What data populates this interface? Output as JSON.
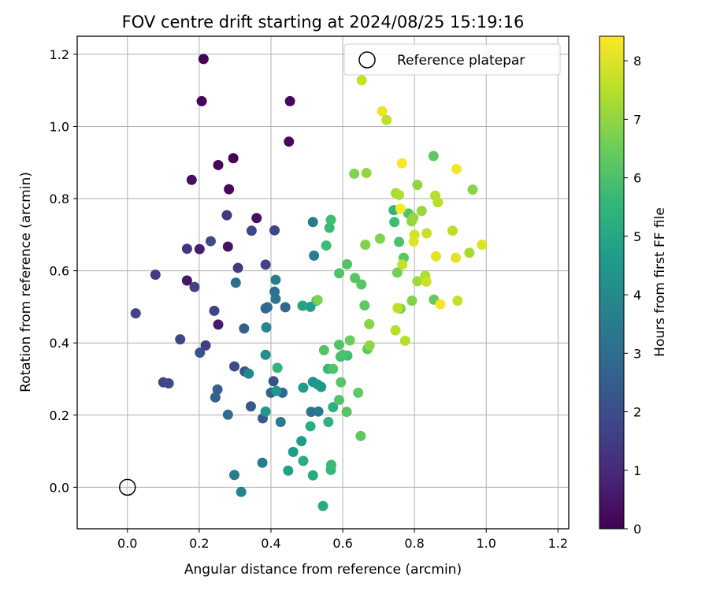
{
  "chart_data": {
    "type": "scatter",
    "title": "FOV centre drift starting at 2024/08/25 15:19:16",
    "xlabel": "Angular distance from reference (arcmin)",
    "ylabel": "Rotation from reference (arcmin)",
    "xlim": [
      -0.14,
      1.23
    ],
    "ylim": [
      -0.115,
      1.25
    ],
    "xticks": [
      0.0,
      0.2,
      0.4,
      0.6,
      0.8,
      1.0,
      1.2
    ],
    "xtick_labels": [
      "0.0",
      "0.2",
      "0.4",
      "0.6",
      "0.8",
      "1.0",
      "1.2"
    ],
    "yticks": [
      0.0,
      0.2,
      0.4,
      0.6,
      0.8,
      1.0,
      1.2
    ],
    "ytick_labels": [
      "0.0",
      "0.2",
      "0.4",
      "0.6",
      "0.8",
      "1.0",
      "1.2"
    ],
    "grid": true,
    "legend": {
      "position": "top-right",
      "entries": [
        {
          "label": "Reference platepar",
          "marker": "open-circle",
          "color": "#000000"
        }
      ]
    },
    "reference_point": {
      "x": 0.0,
      "y": 0.0
    },
    "colorbar": {
      "label": "Hours from first FF file",
      "min": 0,
      "max": 8.42,
      "ticks": [
        0,
        1,
        2,
        3,
        4,
        5,
        6,
        7,
        8
      ],
      "tick_labels": [
        "0",
        "1",
        "2",
        "3",
        "4",
        "5",
        "6",
        "7",
        "8"
      ],
      "colormap": "viridis"
    },
    "colormap_stops": [
      "#440154",
      "#482878",
      "#3e4989",
      "#31688e",
      "#26828e",
      "#1f9e89",
      "#35b779",
      "#6ece58",
      "#b5de2b",
      "#fde725"
    ],
    "points": [
      [
        0.212,
        1.187,
        0.05
      ],
      [
        0.207,
        1.07,
        0.1
      ],
      [
        0.453,
        1.07,
        0.15
      ],
      [
        0.45,
        0.958,
        0.2
      ],
      [
        0.295,
        0.912,
        0.1
      ],
      [
        0.253,
        0.893,
        0.15
      ],
      [
        0.179,
        0.852,
        0.3
      ],
      [
        0.283,
        0.826,
        0.2
      ],
      [
        0.36,
        0.746,
        0.35
      ],
      [
        0.28,
        0.667,
        0.4
      ],
      [
        0.201,
        0.66,
        0.7
      ],
      [
        0.166,
        0.661,
        1.3
      ],
      [
        0.166,
        0.573,
        0.5
      ],
      [
        0.253,
        0.451,
        0.6
      ],
      [
        0.078,
        0.589,
        1.5
      ],
      [
        0.308,
        0.608,
        1.5
      ],
      [
        0.277,
        0.754,
        1.3
      ],
      [
        0.346,
        0.711,
        1.8
      ],
      [
        0.41,
        0.712,
        1.8
      ],
      [
        0.232,
        0.682,
        1.9
      ],
      [
        0.023,
        0.482,
        1.7
      ],
      [
        0.187,
        0.555,
        1.7
      ],
      [
        0.385,
        0.617,
        1.7
      ],
      [
        0.242,
        0.489,
        1.7
      ],
      [
        0.147,
        0.41,
        1.8
      ],
      [
        0.218,
        0.393,
        1.6
      ],
      [
        0.202,
        0.373,
        2.2
      ],
      [
        0.1,
        0.291,
        1.8
      ],
      [
        0.115,
        0.288,
        1.9
      ],
      [
        0.298,
        0.335,
        1.9
      ],
      [
        0.327,
        0.321,
        2.3
      ],
      [
        0.344,
        0.224,
        2.3
      ],
      [
        0.407,
        0.294,
        2.1
      ],
      [
        0.377,
        0.191,
        2.4
      ],
      [
        0.251,
        0.271,
        2.6
      ],
      [
        0.245,
        0.249,
        2.6
      ],
      [
        0.325,
        0.44,
        2.5
      ],
      [
        0.385,
        0.496,
        2.6
      ],
      [
        0.44,
        0.499,
        2.8
      ],
      [
        0.4,
        0.262,
        2.7
      ],
      [
        0.432,
        0.262,
        2.8
      ],
      [
        0.28,
        0.201,
        3.0
      ],
      [
        0.302,
        0.567,
        3.0
      ],
      [
        0.41,
        0.542,
        3.1
      ],
      [
        0.413,
        0.522,
        3.2
      ],
      [
        0.39,
        0.499,
        3.0
      ],
      [
        0.413,
        0.575,
        3.5
      ],
      [
        0.517,
        0.735,
        3.5
      ],
      [
        0.52,
        0.642,
        3.6
      ],
      [
        0.512,
        0.209,
        3.3
      ],
      [
        0.532,
        0.21,
        3.4
      ],
      [
        0.427,
        0.181,
        3.5
      ],
      [
        0.376,
        0.068,
        3.5
      ],
      [
        0.298,
        0.034,
        3.6
      ],
      [
        0.317,
        -0.013,
        3.8
      ],
      [
        0.338,
        0.315,
        3.9
      ],
      [
        0.387,
        0.443,
        3.9
      ],
      [
        0.385,
        0.367,
        4.2
      ],
      [
        0.517,
        0.292,
        4.3
      ],
      [
        0.53,
        0.285,
        4.5
      ],
      [
        0.54,
        0.278,
        4.5
      ],
      [
        0.415,
        0.267,
        4.4
      ],
      [
        0.385,
        0.21,
        4.4
      ],
      [
        0.49,
        0.276,
        4.6
      ],
      [
        0.51,
        0.5,
        4.7
      ],
      [
        0.488,
        0.503,
        4.9
      ],
      [
        0.485,
        0.128,
        4.6
      ],
      [
        0.462,
        0.098,
        4.6
      ],
      [
        0.448,
        0.046,
        4.7
      ],
      [
        0.49,
        0.073,
        5.2
      ],
      [
        0.517,
        0.033,
        5.1
      ],
      [
        0.545,
        -0.052,
        5.2
      ],
      [
        0.51,
        0.169,
        5.2
      ],
      [
        0.56,
        0.181,
        5.4
      ],
      [
        0.573,
        0.222,
        5.3
      ],
      [
        0.418,
        0.331,
        5.5
      ],
      [
        0.527,
        0.517,
        5.5
      ],
      [
        0.559,
        0.328,
        5.6
      ],
      [
        0.567,
        0.048,
        5.6
      ],
      [
        0.568,
        0.062,
        5.7
      ],
      [
        0.563,
        0.719,
        5.7
      ],
      [
        0.567,
        0.741,
        5.8
      ],
      [
        0.554,
        0.67,
        5.8
      ],
      [
        0.613,
        0.365,
        5.9
      ],
      [
        0.594,
        0.362,
        5.9
      ],
      [
        0.6,
        0.367,
        6.0
      ],
      [
        0.548,
        0.38,
        6.1
      ],
      [
        0.573,
        0.328,
        6.1
      ],
      [
        0.59,
        0.395,
        6.1
      ],
      [
        0.59,
        0.242,
        6.1
      ],
      [
        0.595,
        0.291,
        6.2
      ],
      [
        0.611,
        0.209,
        6.2
      ],
      [
        0.612,
        0.618,
        6.1
      ],
      [
        0.59,
        0.593,
        6.1
      ],
      [
        0.634,
        0.58,
        6.2
      ],
      [
        0.652,
        0.562,
        6.2
      ],
      [
        0.661,
        0.504,
        6.3
      ],
      [
        0.669,
        0.383,
        6.3
      ],
      [
        0.643,
        0.262,
        6.3
      ],
      [
        0.65,
        0.142,
        6.3
      ],
      [
        0.62,
        0.407,
        6.5
      ],
      [
        0.53,
        0.519,
        6.7
      ],
      [
        0.674,
        0.452,
        6.9
      ],
      [
        0.675,
        0.393,
        7.0
      ],
      [
        0.663,
        0.672,
        6.8
      ],
      [
        0.632,
        0.869,
        6.8
      ],
      [
        0.666,
        0.871,
        7.0
      ],
      [
        0.853,
        0.918,
        6.3
      ],
      [
        0.742,
        0.768,
        5.5
      ],
      [
        0.744,
        0.735,
        5.8
      ],
      [
        0.757,
        0.68,
        6.0
      ],
      [
        0.783,
        0.759,
        6.1
      ],
      [
        0.77,
        0.636,
        6.2
      ],
      [
        0.854,
        0.52,
        6.4
      ],
      [
        0.752,
        0.595,
        6.6
      ],
      [
        0.761,
        0.495,
        6.7
      ],
      [
        0.793,
        0.517,
        6.8
      ],
      [
        0.808,
        0.838,
        7.0
      ],
      [
        0.792,
        0.737,
        7.0
      ],
      [
        0.797,
        0.747,
        7.1
      ],
      [
        0.82,
        0.766,
        7.1
      ],
      [
        0.808,
        0.571,
        7.2
      ],
      [
        0.83,
        0.586,
        7.4
      ],
      [
        0.747,
        0.435,
        7.5
      ],
      [
        0.704,
        0.689,
        6.8
      ],
      [
        0.748,
        0.815,
        7.3
      ],
      [
        0.757,
        0.81,
        7.4
      ],
      [
        0.858,
        0.808,
        7.5
      ],
      [
        0.865,
        0.79,
        7.5
      ],
      [
        0.962,
        0.825,
        6.9
      ],
      [
        0.953,
        0.65,
        7.3
      ],
      [
        0.774,
        0.406,
        7.5
      ],
      [
        0.753,
        0.497,
        7.6
      ],
      [
        0.766,
        0.617,
        7.7
      ],
      [
        0.834,
        0.704,
        7.7
      ],
      [
        0.8,
        0.7,
        7.9
      ],
      [
        0.798,
        0.681,
        8.0
      ],
      [
        0.906,
        0.711,
        7.6
      ],
      [
        0.92,
        0.517,
        7.7
      ],
      [
        0.833,
        0.57,
        7.8
      ],
      [
        0.86,
        0.64,
        8.1
      ],
      [
        0.915,
        0.636,
        8.1
      ],
      [
        0.988,
        0.672,
        8.0
      ],
      [
        0.872,
        0.507,
        8.3
      ],
      [
        0.653,
        1.128,
        7.7
      ],
      [
        0.71,
        1.042,
        8.2
      ],
      [
        0.722,
        1.018,
        7.6
      ],
      [
        0.765,
        0.898,
        8.4
      ],
      [
        0.917,
        0.882,
        8.3
      ],
      [
        0.761,
        0.772,
        8.4
      ]
    ]
  }
}
